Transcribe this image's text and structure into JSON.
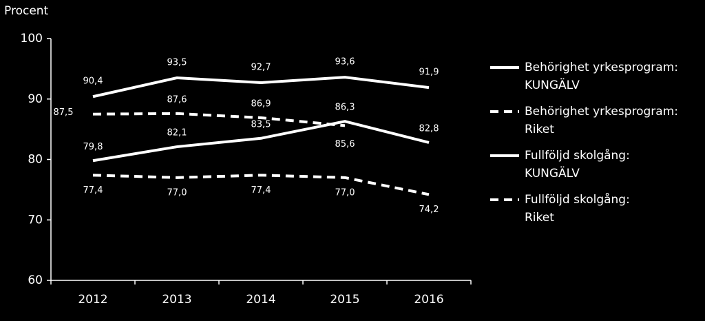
{
  "chart_data": {
    "type": "line",
    "y_axis_label": "Procent",
    "categories": [
      "2012",
      "2013",
      "2014",
      "2015",
      "2016"
    ],
    "series": [
      {
        "name": "Behörighet yrkesprogram: KUNGÄLV",
        "color": "#ffffff",
        "dashed": false,
        "values": [
          90.4,
          93.5,
          92.7,
          93.6,
          91.9
        ],
        "value_labels": [
          "90,4",
          "93,5",
          "92,7",
          "93,6",
          "91,9"
        ]
      },
      {
        "name": "Behörighet yrkesprogram: Riket",
        "color": "#ffffff",
        "dashed": true,
        "values": [
          87.5,
          87.6,
          86.9,
          85.6,
          null
        ],
        "value_labels": [
          "87,5",
          "87,6",
          "86,9",
          "85,6",
          null
        ]
      },
      {
        "name": "Fullföljd skolgång: KUNGÄLV",
        "color": "#ffffff",
        "dashed": false,
        "values": [
          79.8,
          82.1,
          83.5,
          86.3,
          82.8
        ],
        "value_labels": [
          "79,8",
          "82,1",
          "83,5",
          "86,3",
          "82,8"
        ]
      },
      {
        "name": "Fullföljd skolgång: Riket",
        "color": "#ffffff",
        "dashed": true,
        "values": [
          77.4,
          77.0,
          77.4,
          77.0,
          74.2
        ],
        "value_labels": [
          "77,4",
          "77,0",
          "77,4",
          "77,0",
          "74,2"
        ]
      }
    ],
    "ylim": [
      60,
      100
    ],
    "yticks": [
      60,
      70,
      80,
      90,
      100
    ],
    "grid": false,
    "legend": "right"
  }
}
